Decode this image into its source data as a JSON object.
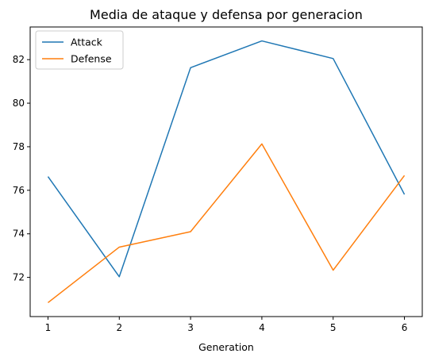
{
  "chart_data": {
    "type": "line",
    "title": "Media de ataque y defensa por generacion",
    "xlabel": "Generation",
    "ylabel": "",
    "x": [
      1,
      2,
      3,
      4,
      5,
      6
    ],
    "xticks": [
      "1",
      "2",
      "3",
      "4",
      "5",
      "6"
    ],
    "yticks": [
      72,
      74,
      76,
      78,
      80,
      82
    ],
    "xlim": [
      0.75,
      6.25
    ],
    "ylim": [
      70.2,
      83.5
    ],
    "grid": false,
    "legend_position": "top-left",
    "series": [
      {
        "name": "Attack",
        "color": "#1f77b4",
        "values": [
          76.63,
          72.03,
          81.63,
          82.86,
          82.05,
          75.81
        ]
      },
      {
        "name": "Defense",
        "color": "#ff7f0e",
        "values": [
          70.84,
          73.39,
          74.1,
          78.13,
          72.33,
          76.68
        ]
      }
    ]
  }
}
